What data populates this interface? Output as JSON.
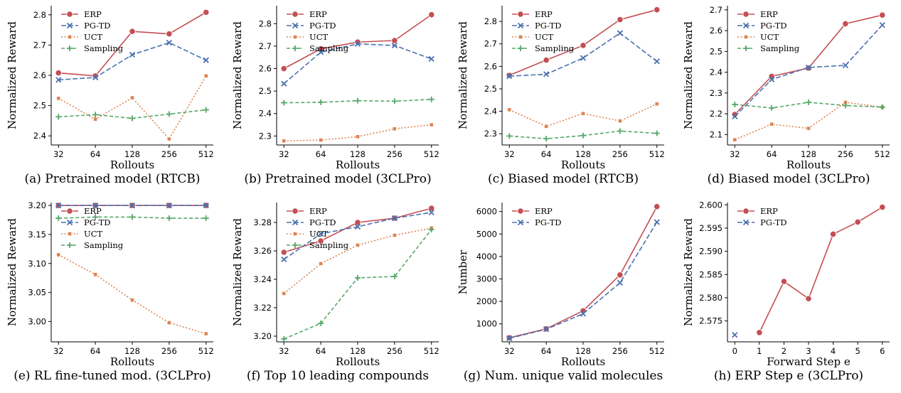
{
  "colors": {
    "ERP": "#c44e52",
    "PG-TD": "#4c72b0",
    "UCT": "#dd8452",
    "Sampling": "#55a868"
  },
  "chart_data": [
    {
      "type": "line",
      "caption": "(a) Pretrained model (RTCB)",
      "xlabel": "Rollouts",
      "ylabel": "Normalized Reward",
      "categories": [
        "32",
        "64",
        "128",
        "256",
        "512"
      ],
      "ylim": [
        2.37,
        2.83
      ],
      "yticks": [
        2.4,
        2.5,
        2.6,
        2.7,
        2.8
      ],
      "ytick_labels": [
        "2.4",
        "2.5",
        "2.6",
        "2.7",
        "2.8"
      ],
      "legend": "top-left",
      "series": [
        {
          "name": "ERP",
          "values": [
            2.608,
            2.598,
            2.745,
            2.737,
            2.808
          ]
        },
        {
          "name": "PG-TD",
          "values": [
            2.585,
            2.593,
            2.668,
            2.708,
            2.65
          ]
        },
        {
          "name": "UCT",
          "values": [
            2.524,
            2.455,
            2.526,
            2.39,
            2.598
          ]
        },
        {
          "name": "Sampling",
          "values": [
            2.463,
            2.47,
            2.458,
            2.472,
            2.486
          ]
        }
      ]
    },
    {
      "type": "line",
      "caption": "(b) Pretrained model (3CLPro)",
      "xlabel": "Rollouts",
      "ylabel": "Normalized Reward",
      "categories": [
        "32",
        "64",
        "128",
        "256",
        "512"
      ],
      "ylim": [
        2.26,
        2.88
      ],
      "yticks": [
        2.3,
        2.4,
        2.5,
        2.6,
        2.7,
        2.8
      ],
      "ytick_labels": [
        "2.3",
        "2.4",
        "2.5",
        "2.6",
        "2.7",
        "2.8"
      ],
      "legend": "top-left",
      "series": [
        {
          "name": "ERP",
          "values": [
            2.6,
            2.688,
            2.718,
            2.725,
            2.84
          ]
        },
        {
          "name": "PG-TD",
          "values": [
            2.533,
            2.673,
            2.71,
            2.703,
            2.643
          ]
        },
        {
          "name": "UCT",
          "values": [
            2.278,
            2.282,
            2.297,
            2.332,
            2.35
          ]
        },
        {
          "name": "Sampling",
          "values": [
            2.448,
            2.45,
            2.457,
            2.455,
            2.463
          ]
        }
      ]
    },
    {
      "type": "line",
      "caption": "(c) Biased model (RTCB)",
      "xlabel": "Rollouts",
      "ylabel": "Normalized Reward",
      "categories": [
        "32",
        "64",
        "128",
        "256",
        "512"
      ],
      "ylim": [
        2.25,
        2.87
      ],
      "yticks": [
        2.3,
        2.4,
        2.5,
        2.6,
        2.7,
        2.8
      ],
      "ytick_labels": [
        "2.3",
        "2.4",
        "2.5",
        "2.6",
        "2.7",
        "2.8"
      ],
      "legend": "top-left",
      "series": [
        {
          "name": "ERP",
          "values": [
            2.56,
            2.628,
            2.693,
            2.808,
            2.852
          ]
        },
        {
          "name": "PG-TD",
          "values": [
            2.556,
            2.565,
            2.637,
            2.748,
            2.622
          ]
        },
        {
          "name": "UCT",
          "values": [
            2.407,
            2.333,
            2.39,
            2.357,
            2.433
          ]
        },
        {
          "name": "Sampling",
          "values": [
            2.29,
            2.278,
            2.292,
            2.312,
            2.302
          ]
        }
      ]
    },
    {
      "type": "line",
      "caption": "(d) Biased model (3CLPro)",
      "xlabel": "Rollouts",
      "ylabel": "Normalized Reward",
      "categories": [
        "32",
        "64",
        "128",
        "256",
        "512"
      ],
      "ylim": [
        2.05,
        2.72
      ],
      "yticks": [
        2.1,
        2.2,
        2.3,
        2.4,
        2.5,
        2.6,
        2.7
      ],
      "ytick_labels": [
        "2.1",
        "2.2",
        "2.3",
        "2.4",
        "2.5",
        "2.6",
        "2.7"
      ],
      "legend": "top-left",
      "series": [
        {
          "name": "ERP",
          "values": [
            2.197,
            2.38,
            2.42,
            2.633,
            2.675
          ]
        },
        {
          "name": "PG-TD",
          "values": [
            2.187,
            2.365,
            2.423,
            2.433,
            2.627
          ]
        },
        {
          "name": "UCT",
          "values": [
            2.075,
            2.15,
            2.13,
            2.255,
            2.232
          ]
        },
        {
          "name": "Sampling",
          "values": [
            2.245,
            2.228,
            2.255,
            2.24,
            2.232
          ]
        }
      ]
    },
    {
      "type": "line",
      "caption": "(e) RL fine-tuned mod. (3CLPro)",
      "xlabel": "Rollouts",
      "ylabel": "Normalized Reward",
      "categories": [
        "32",
        "64",
        "128",
        "256",
        "512"
      ],
      "ylim": [
        2.965,
        3.205
      ],
      "yticks": [
        3.0,
        3.05,
        3.1,
        3.15,
        3.2
      ],
      "ytick_labels": [
        "3.00",
        "3.05",
        "3.10",
        "3.15",
        "3.20"
      ],
      "legend": "top-left",
      "series": [
        {
          "name": "ERP",
          "values": [
            3.2,
            3.2,
            3.2,
            3.2,
            3.2
          ]
        },
        {
          "name": "PG-TD",
          "values": [
            3.2,
            3.2,
            3.2,
            3.2,
            3.2
          ]
        },
        {
          "name": "UCT",
          "values": [
            3.115,
            3.081,
            3.037,
            2.998,
            2.979
          ]
        },
        {
          "name": "Sampling",
          "values": [
            3.178,
            3.18,
            3.18,
            3.178,
            3.178
          ]
        }
      ]
    },
    {
      "type": "line",
      "caption": "(f) Top 10 leading compounds",
      "xlabel": "Rollouts",
      "ylabel": "Normalized Reward",
      "categories": [
        "32",
        "64",
        "128",
        "256",
        "512"
      ],
      "ylim": [
        3.196,
        3.294
      ],
      "yticks": [
        3.2,
        3.22,
        3.24,
        3.26,
        3.28
      ],
      "ytick_labels": [
        "3.20",
        "3.22",
        "3.24",
        "3.26",
        "3.28"
      ],
      "legend": "top-left",
      "series": [
        {
          "name": "ERP",
          "values": [
            3.259,
            3.267,
            3.28,
            3.283,
            3.29
          ]
        },
        {
          "name": "PG-TD",
          "values": [
            3.254,
            3.272,
            3.277,
            3.283,
            3.287
          ]
        },
        {
          "name": "UCT",
          "values": [
            3.23,
            3.251,
            3.264,
            3.271,
            3.276
          ]
        },
        {
          "name": "Sampling",
          "values": [
            3.198,
            3.209,
            3.241,
            3.242,
            3.275
          ]
        }
      ]
    },
    {
      "type": "line",
      "caption": "(g) Num. unique valid molecules",
      "xlabel": "Rollouts",
      "ylabel": "Number",
      "categories": [
        "32",
        "64",
        "128",
        "256",
        "512"
      ],
      "ylim": [
        200,
        6400
      ],
      "yticks": [
        1000,
        2000,
        3000,
        4000,
        5000,
        6000
      ],
      "ytick_labels": [
        "1000",
        "2000",
        "3000",
        "4000",
        "5000",
        "6000"
      ],
      "legend": "top-left",
      "series": [
        {
          "name": "ERP",
          "values": [
            380,
            780,
            1580,
            3180,
            6220
          ]
        },
        {
          "name": "PG-TD",
          "values": [
            360,
            760,
            1450,
            2830,
            5530
          ]
        }
      ]
    },
    {
      "type": "line",
      "caption": "(h) ERP Step e (3CLPro)",
      "xlabel": "Forward Step e",
      "ylabel": "Normalized Reward",
      "categories": [
        "0",
        "1",
        "2",
        "3",
        "4",
        "5",
        "6"
      ],
      "ylim": [
        2.5705,
        2.6005
      ],
      "yticks": [
        2.575,
        2.58,
        2.585,
        2.59,
        2.595,
        2.6
      ],
      "ytick_labels": [
        "2.575",
        "2.580",
        "2.585",
        "2.590",
        "2.595",
        "2.600"
      ],
      "legend": "top-left",
      "series": [
        {
          "name": "ERP",
          "values": [
            null,
            2.5725,
            2.5835,
            2.5798,
            2.5937,
            2.5963,
            2.5995
          ]
        },
        {
          "name": "PG-TD",
          "values": [
            2.572,
            null,
            null,
            null,
            null,
            null,
            null
          ]
        }
      ]
    }
  ]
}
